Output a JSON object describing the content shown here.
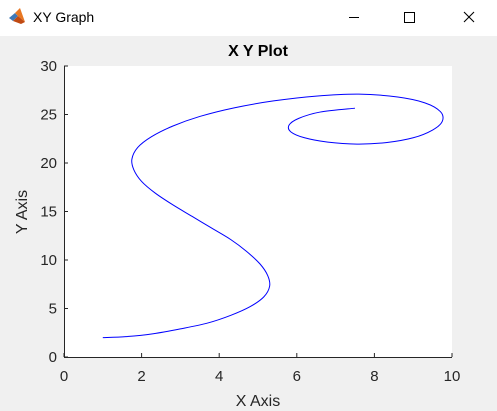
{
  "window": {
    "title": "XY Graph",
    "app_icon": "matlab-logo-icon",
    "controls": [
      "minimize-icon",
      "maximize-icon",
      "close-icon"
    ]
  },
  "colors": {
    "line": "#0000ff",
    "axes_background": "#ffffff",
    "figure_background": "#f0f0f0"
  },
  "chart_data": {
    "type": "line",
    "title": "X Y Plot",
    "xlabel": "X Axis",
    "ylabel": "Y Axis",
    "xlim": [
      0,
      10
    ],
    "ylim": [
      0,
      30
    ],
    "xticks": [
      0,
      2,
      4,
      6,
      8,
      10
    ],
    "yticks": [
      0,
      5,
      10,
      15,
      20,
      25,
      30
    ],
    "grid": false,
    "series": [
      {
        "x": [
          1.0,
          1.6,
          2.3,
          3.0,
          3.7,
          4.3,
          4.8,
          5.15,
          5.3,
          5.25,
          5.05,
          4.7,
          4.3,
          3.8,
          3.3,
          2.8,
          2.35,
          2.0,
          1.8,
          1.75,
          1.9,
          2.25,
          2.8,
          3.5,
          4.4,
          5.4,
          6.5,
          7.6,
          8.6,
          9.3,
          9.7,
          9.75,
          9.5,
          9.0,
          8.3,
          7.55,
          6.8,
          6.2,
          5.85,
          5.8,
          6.05,
          6.6,
          7.5
        ],
        "y": [
          2.0,
          2.1,
          2.4,
          2.9,
          3.5,
          4.3,
          5.2,
          6.2,
          7.3,
          8.4,
          9.6,
          10.9,
          12.1,
          13.3,
          14.5,
          15.7,
          16.9,
          18.1,
          19.3,
          20.4,
          21.6,
          22.7,
          23.8,
          24.8,
          25.7,
          26.4,
          26.9,
          27.1,
          26.8,
          26.2,
          25.3,
          24.3,
          23.4,
          22.6,
          22.1,
          21.95,
          22.15,
          22.6,
          23.2,
          23.9,
          24.6,
          25.25,
          25.65
        ]
      }
    ]
  }
}
